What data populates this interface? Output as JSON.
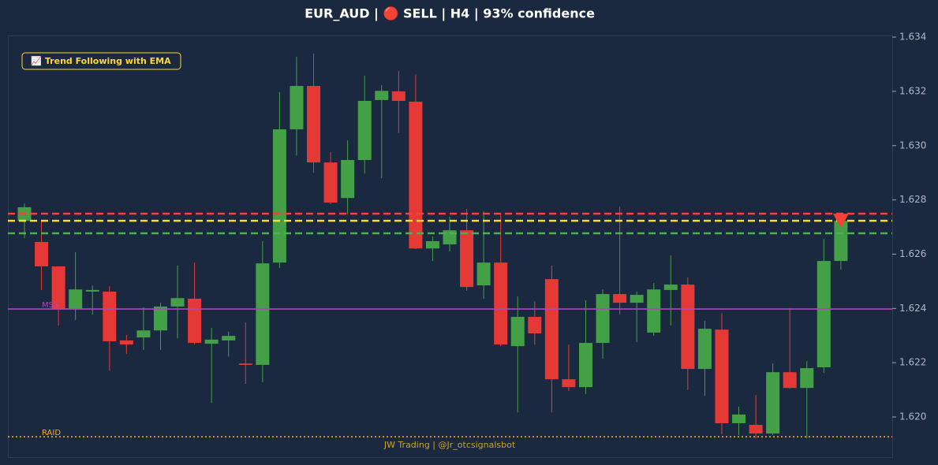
{
  "chart_data": {
    "type": "candlestick",
    "title": "EUR_AUD | 🔴 SELL | H4 | 93% confidence",
    "annotation": "📈 Trend Following with EMA",
    "watermark": "JW Trading | @Jr_otcsignalsbot",
    "up_color": "#43a047",
    "down_color": "#e53935",
    "ylim": [
      1.61852,
      1.63406
    ],
    "yticks": [
      {
        "value": 1.62,
        "label": "1.620"
      },
      1.622,
      1.624,
      1.626,
      1.628,
      {
        "value": 1.63,
        "label": "1.630"
      },
      1.632,
      1.634
    ],
    "open": [
      1.62723,
      1.62645,
      1.62555,
      1.62398,
      1.62462,
      1.62462,
      1.62282,
      1.62293,
      1.62319,
      1.62407,
      1.62436,
      1.6227,
      1.62282,
      1.62197,
      1.62192,
      1.62569,
      1.6306,
      1.6322,
      1.62938,
      1.62807,
      1.62947,
      1.63168,
      1.632,
      1.63162,
      1.62621,
      1.62636,
      1.62688,
      1.62485,
      1.62569,
      1.62261,
      1.62369,
      1.62508,
      1.62139,
      1.6211,
      1.62273,
      1.62453,
      1.62421,
      1.62311,
      1.62468,
      1.62488,
      1.62177,
      1.62322,
      1.61977,
      1.61971,
      1.61939,
      1.62165,
      1.62107,
      1.62183,
      1.62575
    ],
    "high": [
      1.62787,
      1.62723,
      1.62555,
      1.62607,
      1.62485,
      1.62482,
      1.62302,
      1.62404,
      1.62421,
      1.62558,
      1.62569,
      1.62328,
      1.62314,
      1.62348,
      1.62648,
      1.63197,
      1.63327,
      1.63339,
      1.62976,
      1.63019,
      1.63258,
      1.63223,
      1.63275,
      1.63263,
      1.62665,
      1.62738,
      1.62767,
      1.62758,
      1.62749,
      1.62444,
      1.62427,
      1.62558,
      1.62267,
      1.6243,
      1.6247,
      1.62775,
      1.62462,
      1.62494,
      1.62595,
      1.62514,
      1.62354,
      1.62383,
      1.62038,
      1.62081,
      1.62197,
      1.62401,
      1.62206,
      1.62656,
      1.62743
    ],
    "low": [
      1.62659,
      1.62468,
      1.62337,
      1.62357,
      1.62377,
      1.62171,
      1.62232,
      1.62247,
      1.62247,
      1.6229,
      1.62267,
      1.62052,
      1.62223,
      1.62122,
      1.62128,
      1.62549,
      1.62964,
      1.629,
      1.62784,
      1.62746,
      1.62897,
      1.6288,
      1.63046,
      1.62619,
      1.62575,
      1.6261,
      1.62465,
      1.62436,
      1.62261,
      1.62017,
      1.62267,
      1.62017,
      1.62096,
      1.62084,
      1.62215,
      1.62377,
      1.62276,
      1.62299,
      1.62337,
      1.62099,
      1.62078,
      1.61936,
      1.61933,
      1.61921,
      1.61933,
      1.62104,
      1.61921,
      1.62162,
      1.62543
    ],
    "close": [
      1.62773,
      1.62555,
      1.62398,
      1.6247,
      1.62468,
      1.62279,
      1.62267,
      1.62319,
      1.62407,
      1.62438,
      1.62273,
      1.62285,
      1.62299,
      1.62192,
      1.62566,
      1.6306,
      1.6322,
      1.62938,
      1.6279,
      1.62947,
      1.63165,
      1.63202,
      1.63165,
      1.62621,
      1.62648,
      1.62688,
      1.62479,
      1.62569,
      1.62267,
      1.62369,
      1.62308,
      1.62139,
      1.6211,
      1.62273,
      1.62453,
      1.62421,
      1.6245,
      1.6247,
      1.62488,
      1.62177,
      1.62325,
      1.61977,
      1.62009,
      1.61939,
      1.62165,
      1.62107,
      1.6218,
      1.62575,
      1.62723
    ],
    "levels": [
      {
        "value": 1.62749,
        "color": "#f44336",
        "style": "dashed"
      },
      {
        "value": 1.62723,
        "color": "#fdd835",
        "style": "dashed"
      },
      {
        "value": 1.62677,
        "color": "#4caf50",
        "style": "dashed"
      },
      {
        "value": 1.62398,
        "color": "#ab47bc",
        "style": "solid",
        "label": "MSS"
      },
      {
        "value": 1.61927,
        "color": "#f9a825",
        "style": "dotted",
        "label": "RAID"
      }
    ],
    "signal_marker": {
      "value": 1.62723,
      "color": "#f44336"
    }
  }
}
